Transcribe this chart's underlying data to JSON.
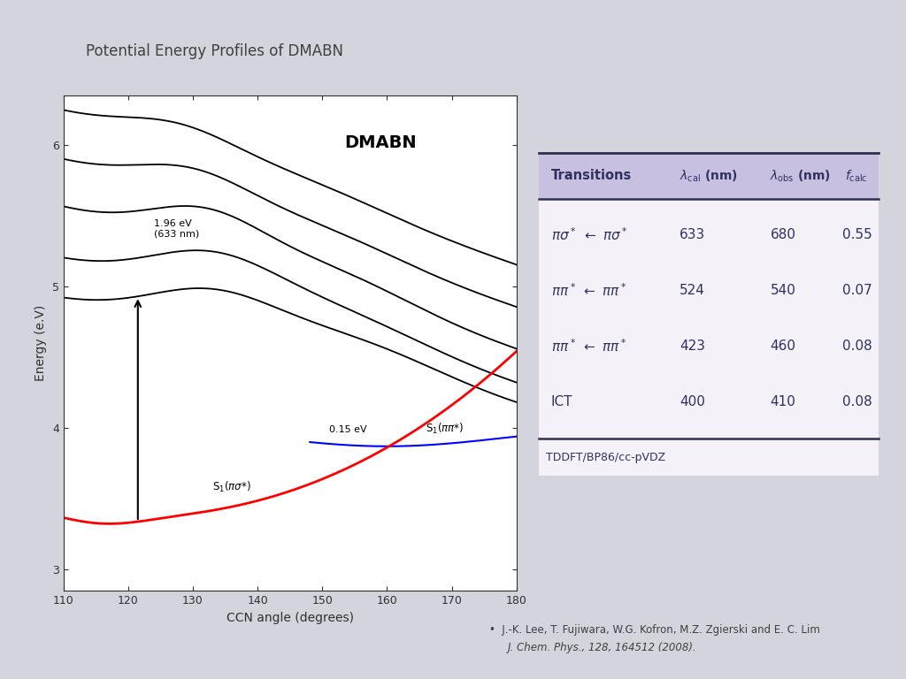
{
  "title": "Potential Energy Profiles of DMABN",
  "background_color": "#d4d4dc",
  "plot_bg_color": "#ffffff",
  "table_header_bg": "#c8c0e0",
  "table_body_bg": "#f4f2f8",
  "table_border_color": "#303050",
  "footer_text": "TDDFT/BP86/cc-pVDZ",
  "citation_line1": "•  J.-K. Lee, T. Fujiwara, W.G. Kofron, M.Z. Zgierski and E. C. Lim",
  "citation_line2": "J. Chem. Phys., 128, 164512 (2008).",
  "xlabel": "CCN angle (degrees)",
  "ylabel": "Energy (e.V)",
  "xmin": 110,
  "xmax": 180,
  "ymin": 2.85,
  "ymax": 6.35,
  "yticks": [
    3,
    4,
    5,
    6
  ],
  "xticks": [
    110,
    120,
    130,
    140,
    150,
    160,
    170,
    180
  ],
  "label_s1_pp": "S$_1$($\\pi\\pi$*)",
  "label_s1_ps": "S$_1$($\\pi\\sigma$*)",
  "annotation_ev": "1.96 eV\n(633 nm)",
  "annotation_ev2": "0.15 eV",
  "dmabn_label": "DMABN",
  "title_color": "#404040",
  "axes_color": "#303030",
  "table_text_color": "#303060",
  "header_text_color": "#303060",
  "footer_color": "#303060",
  "citation_color": "#404040"
}
